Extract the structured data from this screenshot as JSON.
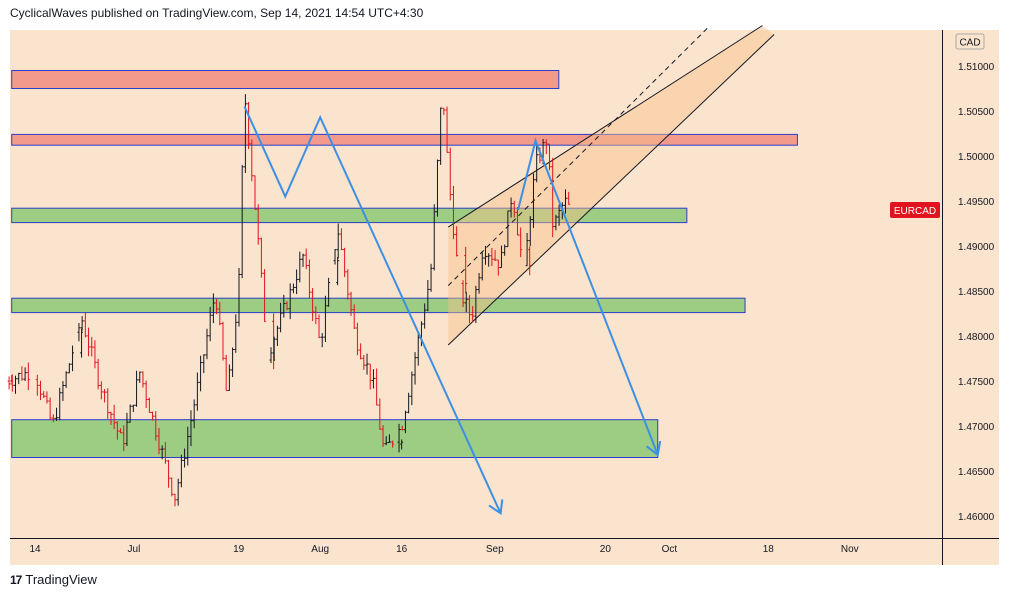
{
  "header": {
    "text": "CyclicalWaves published on TradingView.com, Sep 14, 2021 14:54 UTC+4:30"
  },
  "footer": {
    "logo_icon": "tradingview-logo-icon",
    "brand": "TradingView"
  },
  "colors": {
    "background": "#fbe4cd",
    "up_candle": "#131722",
    "down_candle": "#e0131e",
    "resistance_zone": "#f39a8d",
    "support_zone": "#9dcc83",
    "zone_border": "#2b3ec9",
    "projection": "#3d8fe6",
    "channel_fill": "#f7c28c",
    "symbol_badge": "#e0131e"
  },
  "chart_data": {
    "type": "candlestick",
    "symbol": "EURCAD",
    "currency": "CAD",
    "x_tick_labels": [
      "14",
      "Jul",
      "19",
      "Aug",
      "16",
      "Sep",
      "20",
      "Oct",
      "18",
      "Nov"
    ],
    "x_tick_dates": [
      "2021-06-14",
      "2021-07-01",
      "2021-07-19",
      "2021-08-02",
      "2021-08-16",
      "2021-09-01",
      "2021-09-20",
      "2021-10-01",
      "2021-10-18",
      "2021-11-01"
    ],
    "y_tick_labels": [
      "1.51000",
      "1.50500",
      "1.50000",
      "1.49500",
      "1.49000",
      "1.48500",
      "1.48000",
      "1.47500",
      "1.47000",
      "1.46500",
      "1.46000"
    ],
    "ylim": [
      1.4575,
      1.5135
    ],
    "last_price_label": "EURCAD",
    "grid": false,
    "price_path": [
      [
        "2021-06-10",
        1.475
      ],
      [
        "2021-06-14",
        1.476
      ],
      [
        "2021-06-17",
        1.47
      ],
      [
        "2021-06-22",
        1.482
      ],
      [
        "2021-06-25",
        1.475
      ],
      [
        "2021-06-29",
        1.468
      ],
      [
        "2021-07-02",
        1.476
      ],
      [
        "2021-07-05",
        1.469
      ],
      [
        "2021-07-08",
        1.462
      ],
      [
        "2021-07-10",
        1.468
      ],
      [
        "2021-07-13",
        1.478
      ],
      [
        "2021-07-15",
        1.485
      ],
      [
        "2021-07-17",
        1.473
      ],
      [
        "2021-07-19",
        1.485
      ],
      [
        "2021-07-20",
        1.507
      ],
      [
        "2021-07-22",
        1.493
      ],
      [
        "2021-07-24",
        1.478
      ],
      [
        "2021-07-28",
        1.485
      ],
      [
        "2021-07-30",
        1.489
      ],
      [
        "2021-08-02",
        1.479
      ],
      [
        "2021-08-05",
        1.492
      ],
      [
        "2021-08-08",
        1.48
      ],
      [
        "2021-08-11",
        1.475
      ],
      [
        "2021-08-13",
        1.467
      ],
      [
        "2021-08-16",
        1.47
      ],
      [
        "2021-08-19",
        1.48
      ],
      [
        "2021-08-21",
        1.487
      ],
      [
        "2021-08-23",
        1.508
      ],
      [
        "2021-08-24",
        1.498
      ],
      [
        "2021-08-26",
        1.485
      ],
      [
        "2021-08-28",
        1.482
      ],
      [
        "2021-08-30",
        1.49
      ],
      [
        "2021-09-02",
        1.488
      ],
      [
        "2021-09-04",
        1.496
      ],
      [
        "2021-09-06",
        1.487
      ],
      [
        "2021-09-08",
        1.499
      ],
      [
        "2021-09-10",
        1.502
      ],
      [
        "2021-09-11",
        1.492
      ],
      [
        "2021-09-13",
        1.495
      ],
      [
        "2021-09-14",
        1.494
      ]
    ],
    "resistance_zones": [
      {
        "price_range": [
          1.5075,
          1.5095
        ],
        "start": "2021-06-10",
        "end": "2021-09-12"
      },
      {
        "price_range": [
          1.5012,
          1.5024
        ],
        "start": "2021-06-10",
        "end": "2021-10-23"
      }
    ],
    "support_zones": [
      {
        "price_range": [
          1.4926,
          1.4942
        ],
        "start": "2021-06-10",
        "end": "2021-10-04"
      },
      {
        "price_range": [
          1.4826,
          1.4842
        ],
        "start": "2021-06-10",
        "end": "2021-10-14"
      },
      {
        "price_range": [
          1.4665,
          1.4707
        ],
        "start": "2021-06-10",
        "end": "2021-09-29"
      }
    ],
    "projection_lines": [
      {
        "points": [
          [
            "2021-07-20",
            1.5055
          ],
          [
            "2021-07-27",
            1.4955
          ],
          [
            "2021-08-02",
            1.5043
          ],
          [
            "2021-09-02",
            1.4603
          ]
        ],
        "arrow": true
      },
      {
        "points": [
          [
            "2021-09-05",
            1.494
          ],
          [
            "2021-09-08",
            1.5017
          ],
          [
            "2021-09-29",
            1.4668
          ]
        ],
        "arrow": true
      }
    ],
    "channel": {
      "upper": [
        [
          "2021-08-24",
          1.4921
        ],
        [
          "2021-10-17",
          1.5145
        ]
      ],
      "lower": [
        [
          "2021-08-24",
          1.479
        ],
        [
          "2021-10-19",
          1.5135
        ]
      ],
      "median": [
        [
          "2021-08-24",
          1.4856
        ],
        [
          "2021-10-08",
          1.5145
        ]
      ]
    }
  }
}
